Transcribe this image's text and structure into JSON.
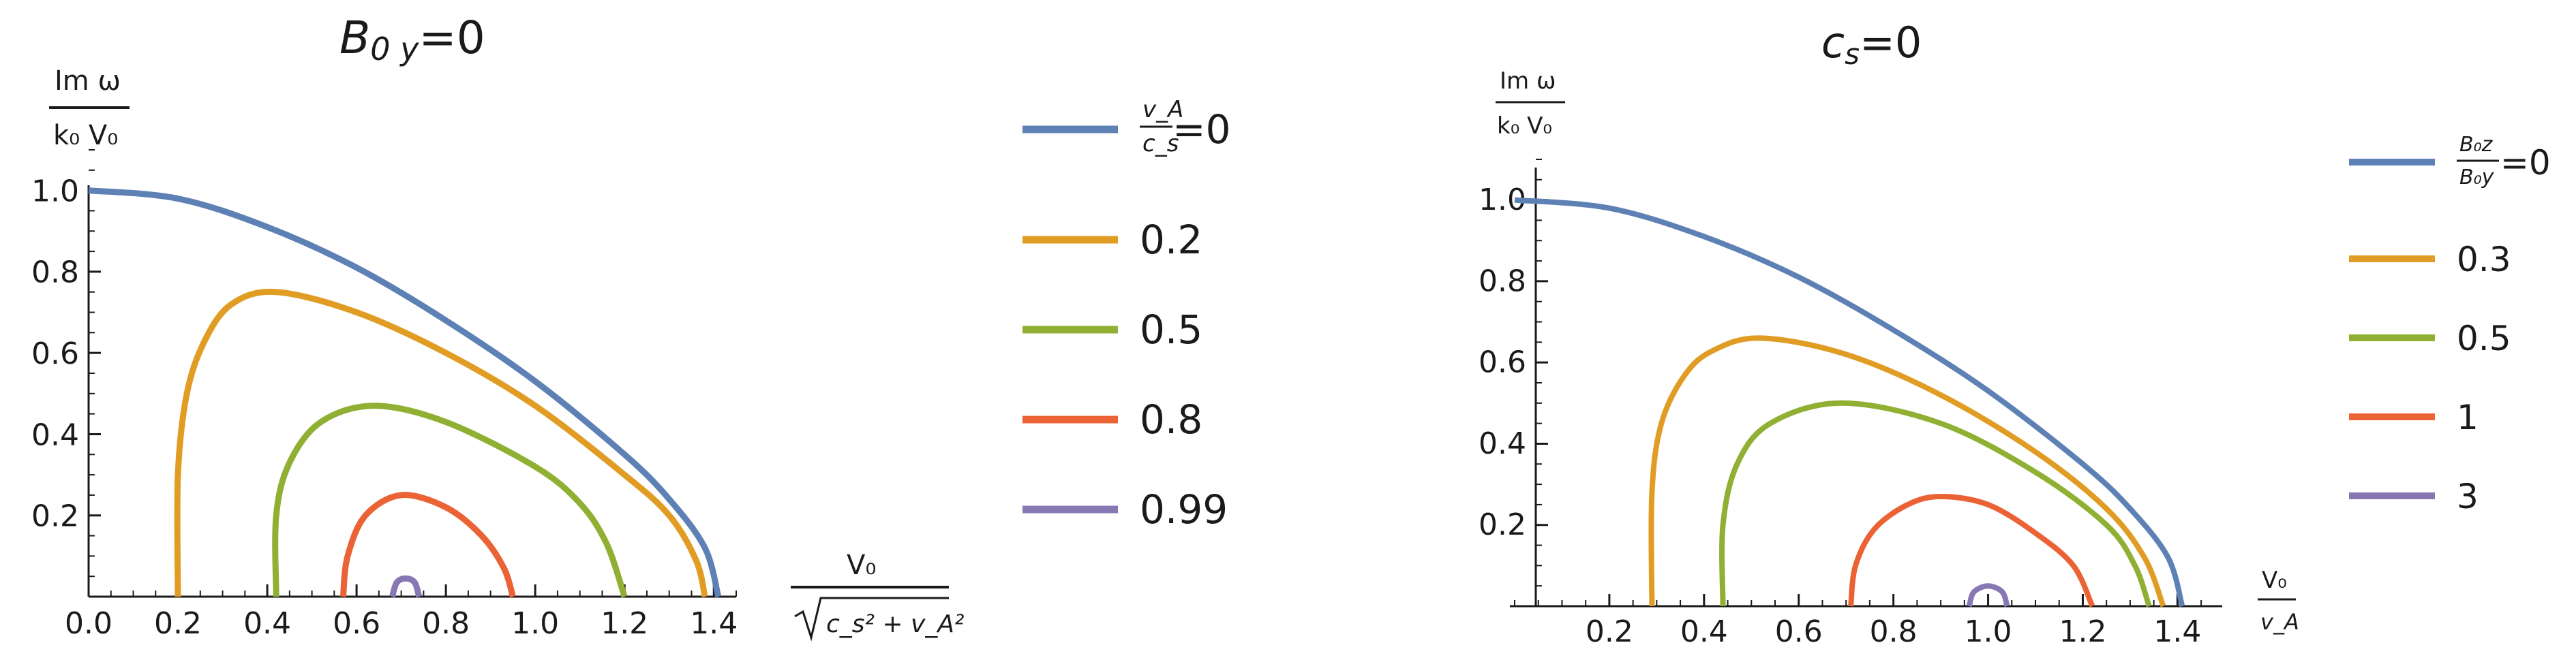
{
  "chart_data": [
    {
      "type": "line",
      "title_main": "B",
      "title_sub": "0 y",
      "title_rest": "=0",
      "ylabel_num": "Im ω",
      "ylabel_den": "k₀ V₀",
      "xlabel_num": "V₀",
      "xlabel_den": "c_s² + v_A²",
      "xlim": [
        0,
        1.45
      ],
      "ylim": [
        0,
        1.1
      ],
      "x_ticks": [
        "0.0",
        "0.2",
        "0.4",
        "0.6",
        "0.8",
        "1.0",
        "1.2",
        "1.4"
      ],
      "y_ticks": [
        "0.2",
        "0.4",
        "0.6",
        "0.8",
        "1.0"
      ],
      "legend_title_num": "v_A",
      "legend_title_den": "c_s",
      "series": [
        {
          "name": "=0",
          "color": "#5e81b5",
          "x": [
            0.0,
            0.2,
            0.4,
            0.6,
            0.8,
            1.0,
            1.2,
            1.3,
            1.38,
            1.41
          ],
          "y": [
            1.0,
            0.98,
            0.91,
            0.81,
            0.68,
            0.53,
            0.35,
            0.24,
            0.12,
            0.0
          ]
        },
        {
          "name": "0.2",
          "color": "#e19c24",
          "x": [
            0.2,
            0.2,
            0.22,
            0.26,
            0.32,
            0.42,
            0.6,
            0.8,
            1.0,
            1.2,
            1.3,
            1.36,
            1.38
          ],
          "y": [
            0.0,
            0.3,
            0.5,
            0.63,
            0.72,
            0.75,
            0.7,
            0.6,
            0.47,
            0.3,
            0.2,
            0.09,
            0.0
          ]
        },
        {
          "name": "0.5",
          "color": "#8fb032",
          "x": [
            0.42,
            0.42,
            0.45,
            0.52,
            0.64,
            0.8,
            1.0,
            1.1,
            1.16,
            1.2
          ],
          "y": [
            0.0,
            0.2,
            0.33,
            0.43,
            0.47,
            0.43,
            0.32,
            0.23,
            0.13,
            0.0
          ]
        },
        {
          "name": "0.8",
          "color": "#eb6235",
          "x": [
            0.57,
            0.58,
            0.62,
            0.7,
            0.8,
            0.88,
            0.93,
            0.95
          ],
          "y": [
            0.0,
            0.1,
            0.2,
            0.25,
            0.22,
            0.15,
            0.07,
            0.0
          ]
        },
        {
          "name": "0.99",
          "color": "#8778b3",
          "x": [
            0.68,
            0.69,
            0.71,
            0.73,
            0.74
          ],
          "y": [
            0.0,
            0.035,
            0.045,
            0.035,
            0.0
          ]
        }
      ]
    },
    {
      "type": "line",
      "title_main": "c",
      "title_sub": "s",
      "title_rest": "=0",
      "ylabel_num": "Im ω",
      "ylabel_den": "k₀ V₀",
      "xlabel_num": "V₀",
      "xlabel_den": "v_A",
      "xlim": [
        0,
        1.47
      ],
      "ylim": [
        0,
        1.1
      ],
      "x_ticks": [
        "0.2",
        "0.4",
        "0.6",
        "0.8",
        "1.0",
        "1.2",
        "1.4"
      ],
      "y_ticks": [
        "0.2",
        "0.4",
        "0.6",
        "0.8",
        "1.0"
      ],
      "legend_title_num": "B₀z",
      "legend_title_den": "B₀y",
      "series": [
        {
          "name": "=0",
          "color": "#5e81b5",
          "x": [
            0.0,
            0.2,
            0.4,
            0.6,
            0.8,
            1.0,
            1.2,
            1.3,
            1.38,
            1.41
          ],
          "y": [
            1.0,
            0.98,
            0.91,
            0.81,
            0.68,
            0.53,
            0.35,
            0.24,
            0.12,
            0.0
          ]
        },
        {
          "name": "0.3",
          "color": "#e19c24",
          "x": [
            0.29,
            0.29,
            0.31,
            0.36,
            0.42,
            0.52,
            0.7,
            0.9,
            1.1,
            1.25,
            1.33,
            1.37
          ],
          "y": [
            0.0,
            0.28,
            0.45,
            0.57,
            0.63,
            0.66,
            0.62,
            0.52,
            0.38,
            0.24,
            0.12,
            0.0
          ]
        },
        {
          "name": "0.5",
          "color": "#8fb032",
          "x": [
            0.44,
            0.44,
            0.47,
            0.54,
            0.69,
            0.9,
            1.1,
            1.25,
            1.31,
            1.34
          ],
          "y": [
            0.0,
            0.2,
            0.35,
            0.45,
            0.5,
            0.45,
            0.33,
            0.2,
            0.1,
            0.0
          ]
        },
        {
          "name": "1",
          "color": "#eb6235",
          "x": [
            0.71,
            0.72,
            0.76,
            0.83,
            0.9,
            1.0,
            1.1,
            1.18,
            1.22
          ],
          "y": [
            0.0,
            0.1,
            0.19,
            0.25,
            0.27,
            0.25,
            0.18,
            0.1,
            0.0
          ]
        },
        {
          "name": "3",
          "color": "#8778b3",
          "x": [
            0.96,
            0.97,
            1.0,
            1.03,
            1.04
          ],
          "y": [
            0.0,
            0.035,
            0.05,
            0.035,
            0.0
          ]
        }
      ]
    }
  ]
}
